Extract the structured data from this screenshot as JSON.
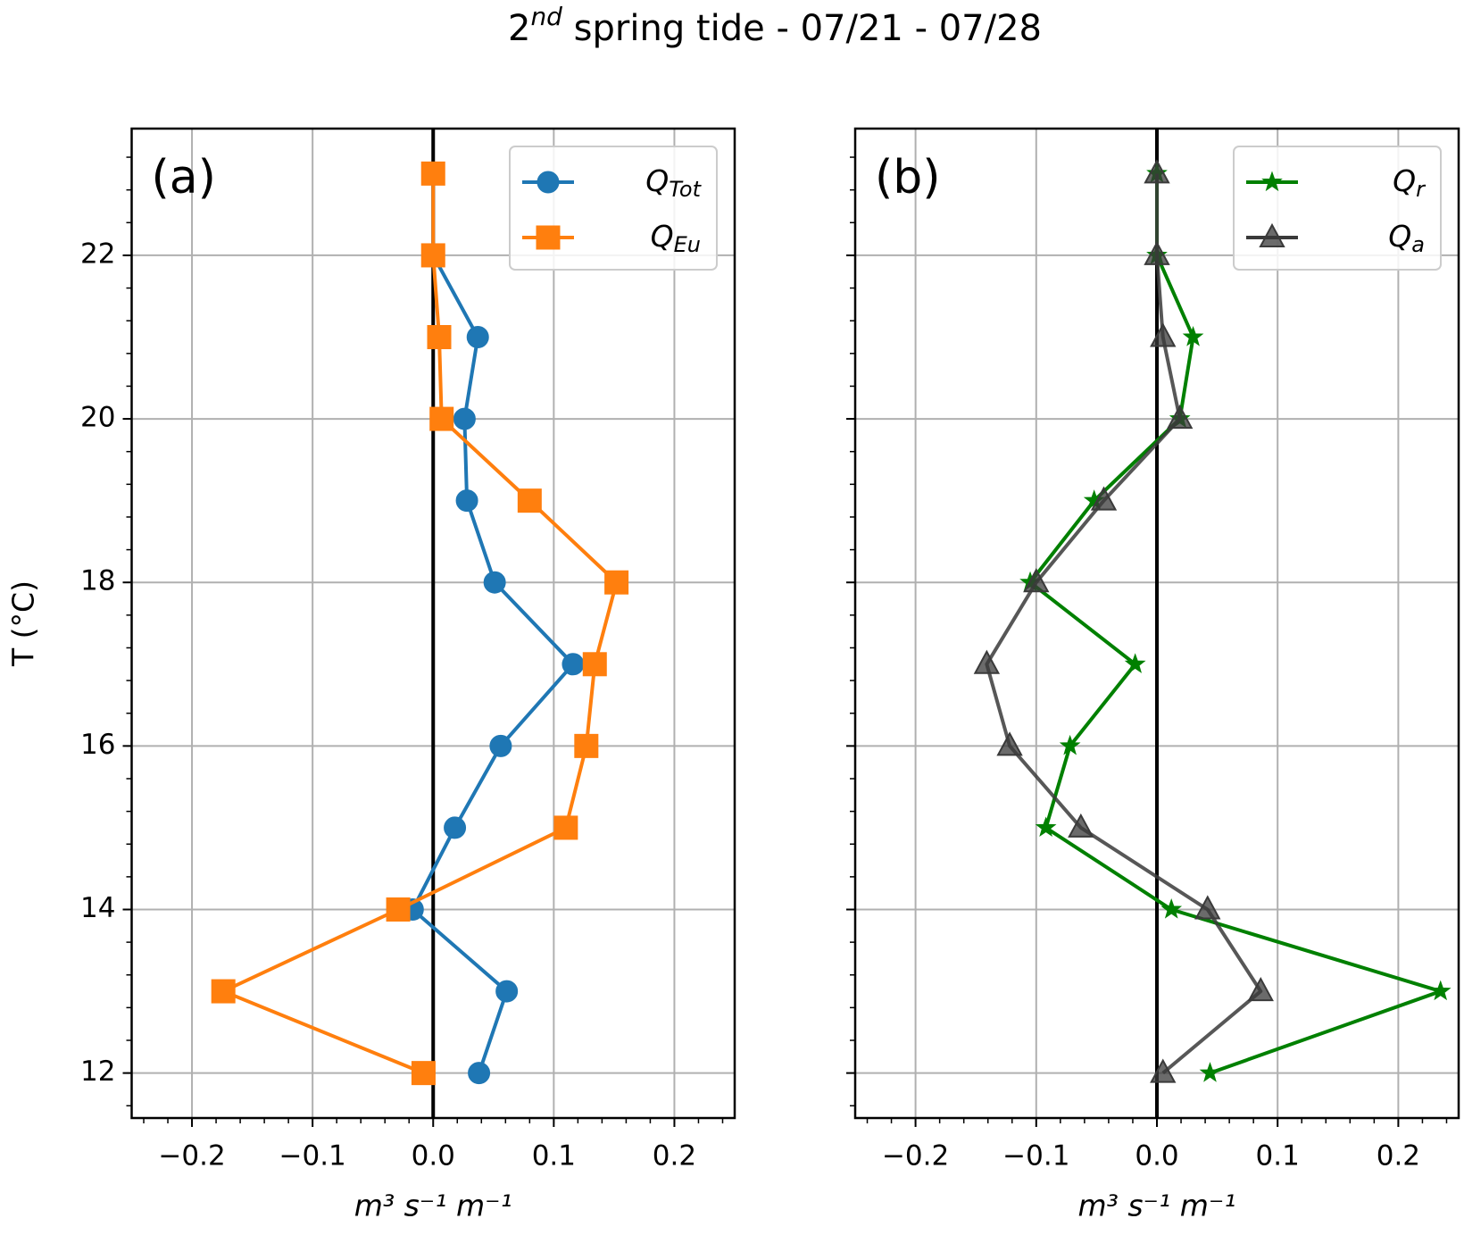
{
  "title": {
    "base": "2",
    "sup": "nd",
    "rest": " spring tide - 07/21 - 07/28"
  },
  "chart_data": [
    {
      "type": "line",
      "annotation": "(a)",
      "xlabel": "m³ s⁻¹ m⁻¹",
      "ylabel": "T (°C)",
      "y": [
        23,
        22,
        21,
        20,
        19,
        18,
        17,
        16,
        15,
        14,
        13,
        12
      ],
      "series": [
        {
          "name": "Q",
          "subscript": "Tot",
          "color": "#1f77b4",
          "marker": "circle",
          "values": [
            0.0,
            0.0,
            0.037,
            0.026,
            0.028,
            0.051,
            0.116,
            0.056,
            0.018,
            -0.017,
            0.061,
            0.038
          ]
        },
        {
          "name": "Q",
          "subscript": "Eu",
          "color": "#ff7f0e",
          "marker": "square",
          "values": [
            0.0,
            0.0,
            0.005,
            0.007,
            0.08,
            0.152,
            0.134,
            0.127,
            0.11,
            -0.029,
            -0.174,
            -0.008
          ]
        }
      ],
      "xlim": [
        -0.25,
        0.25
      ],
      "ylim": [
        11.45,
        23.55
      ],
      "xticks": [
        {
          "value": -0.2,
          "label": "−0.2"
        },
        {
          "value": -0.1,
          "label": "−0.1"
        },
        {
          "value": 0,
          "label": "0.0"
        },
        0.1,
        0.2
      ],
      "yticks": [
        12,
        14,
        16,
        18,
        20,
        22
      ],
      "ytick_labels": true,
      "xminor_step": 0.02,
      "yminor_step": 0.4,
      "grid": true,
      "vline": 0,
      "legend": "upper right"
    },
    {
      "type": "line",
      "annotation": "(b)",
      "xlabel": "m³ s⁻¹ m⁻¹",
      "y": [
        23,
        22,
        21,
        20,
        19,
        18,
        17,
        16,
        15,
        14,
        13,
        12
      ],
      "series": [
        {
          "name": "Q",
          "subscript": "r",
          "color": "#008000",
          "marker": "star",
          "values": [
            0.0,
            0.0,
            0.03,
            0.019,
            -0.052,
            -0.105,
            -0.018,
            -0.072,
            -0.092,
            0.012,
            0.235,
            0.044
          ]
        },
        {
          "name": "Q",
          "subscript": "a",
          "color": "#3a3a3a",
          "marker": "triangle",
          "values": [
            0.0,
            0.0,
            0.005,
            0.019,
            -0.044,
            -0.1,
            -0.141,
            -0.122,
            -0.063,
            0.042,
            0.086,
            0.005
          ]
        }
      ],
      "xlim": [
        -0.25,
        0.25
      ],
      "ylim": [
        11.45,
        23.55
      ],
      "xticks": [
        {
          "value": -0.2,
          "label": "−0.2"
        },
        {
          "value": -0.1,
          "label": "−0.1"
        },
        {
          "value": 0,
          "label": "0.0"
        },
        0.1,
        0.2
      ],
      "yticks": [
        12,
        14,
        16,
        18,
        20,
        22
      ],
      "ytick_labels": false,
      "xminor_step": 0.02,
      "yminor_step": 0.4,
      "grid": true,
      "vline": 0,
      "legend": "upper right"
    }
  ]
}
